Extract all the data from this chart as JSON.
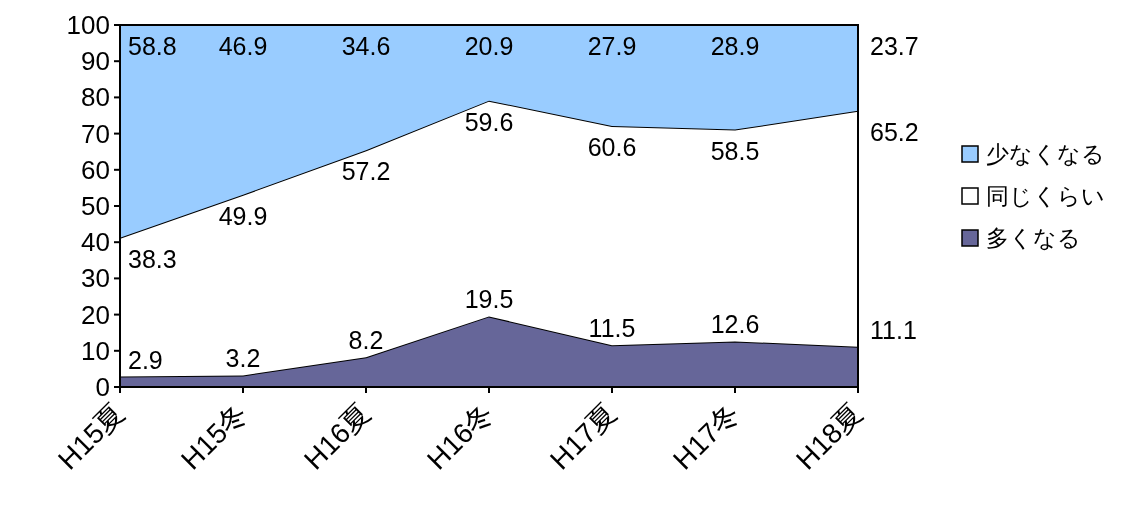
{
  "chart_data": {
    "type": "area",
    "stacked": true,
    "categories": [
      "H15夏",
      "H15冬",
      "H16夏",
      "H16冬",
      "H17夏",
      "H17冬",
      "H18夏"
    ],
    "series": [
      {
        "name": "多くなる",
        "color": "#666699",
        "values": [
          2.9,
          3.2,
          8.2,
          19.5,
          11.5,
          12.6,
          11.1
        ]
      },
      {
        "name": "同じくらい",
        "color": "#ffffff",
        "values": [
          38.3,
          49.9,
          57.2,
          59.6,
          60.6,
          58.5,
          65.2
        ]
      },
      {
        "name": "少なくなる",
        "color": "#99ccff",
        "values": [
          58.8,
          46.9,
          34.6,
          20.9,
          27.9,
          28.9,
          23.7
        ]
      }
    ],
    "ylim": [
      0,
      100
    ],
    "yticks": [
      0,
      10,
      20,
      30,
      40,
      50,
      60,
      70,
      80,
      90,
      100
    ],
    "data_labels": true,
    "legend": "right"
  }
}
